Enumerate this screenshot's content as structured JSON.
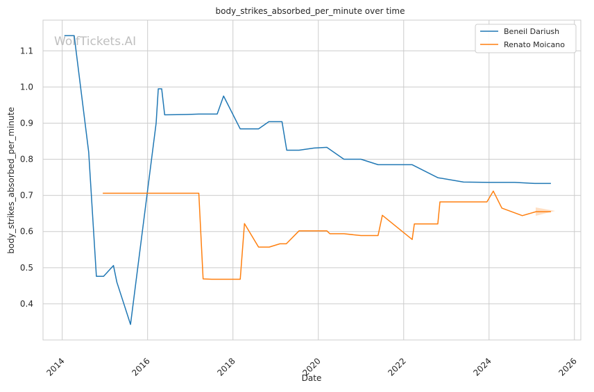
{
  "watermark": "WolfTickets.AI",
  "chart_data": {
    "type": "line",
    "title": "body_strikes_absorbed_per_minute over time",
    "xlabel": "Date",
    "ylabel": "body_strikes_absorbed_per_minute",
    "xlim": [
      2013.55,
      2026.15
    ],
    "ylim": [
      0.3,
      1.185
    ],
    "x_ticks": [
      {
        "value": 2014,
        "label": "2014"
      },
      {
        "value": 2016,
        "label": "2016"
      },
      {
        "value": 2018,
        "label": "2018"
      },
      {
        "value": 2020,
        "label": "2020"
      },
      {
        "value": 2022,
        "label": "2022"
      },
      {
        "value": 2024,
        "label": "2024"
      },
      {
        "value": 2026,
        "label": "2026"
      }
    ],
    "y_ticks": [
      {
        "value": 0.4,
        "label": "0.4"
      },
      {
        "value": 0.5,
        "label": "0.5"
      },
      {
        "value": 0.6,
        "label": "0.6"
      },
      {
        "value": 0.7,
        "label": "0.7"
      },
      {
        "value": 0.8,
        "label": "0.8"
      },
      {
        "value": 0.9,
        "label": "0.9"
      },
      {
        "value": 1.0,
        "label": "1.0"
      },
      {
        "value": 1.1,
        "label": "1.1"
      }
    ],
    "grid": true,
    "legend_position": "top-right",
    "series": [
      {
        "name": "Beneil Dariush",
        "color": "#1f77b4",
        "x": [
          2014.05,
          2014.28,
          2014.62,
          2014.8,
          2014.97,
          2015.2,
          2015.28,
          2015.6,
          2016.2,
          2016.25,
          2016.33,
          2016.4,
          2016.92,
          2017.2,
          2017.63,
          2017.78,
          2018.17,
          2018.6,
          2018.84,
          2019.15,
          2019.26,
          2019.55,
          2019.9,
          2020.2,
          2020.6,
          2021.0,
          2021.4,
          2022.0,
          2022.2,
          2022.8,
          2023.4,
          2024.0,
          2024.6,
          2025.07,
          2025.45
        ],
        "y": [
          1.142,
          1.142,
          0.82,
          0.476,
          0.476,
          0.506,
          0.46,
          0.343,
          0.9,
          0.995,
          0.995,
          0.923,
          0.924,
          0.925,
          0.925,
          0.975,
          0.884,
          0.884,
          0.904,
          0.904,
          0.825,
          0.825,
          0.831,
          0.833,
          0.8,
          0.8,
          0.785,
          0.785,
          0.785,
          0.749,
          0.737,
          0.736,
          0.736,
          0.733,
          0.733
        ]
      },
      {
        "name": "Renato Moicano",
        "color": "#ff7f0e",
        "x": [
          2014.95,
          2017.2,
          2017.3,
          2017.5,
          2018.17,
          2018.27,
          2018.6,
          2018.85,
          2019.1,
          2019.25,
          2019.55,
          2020.2,
          2020.27,
          2020.6,
          2021.0,
          2021.4,
          2021.5,
          2022.2,
          2022.25,
          2022.8,
          2022.85,
          2023.5,
          2023.95,
          2024.1,
          2024.3,
          2024.78,
          2025.1,
          2025.45
        ],
        "y": [
          0.706,
          0.706,
          0.469,
          0.468,
          0.468,
          0.622,
          0.557,
          0.557,
          0.566,
          0.566,
          0.602,
          0.602,
          0.594,
          0.594,
          0.589,
          0.589,
          0.645,
          0.578,
          0.621,
          0.621,
          0.682,
          0.682,
          0.682,
          0.712,
          0.665,
          0.644,
          0.655,
          0.655
        ]
      }
    ]
  }
}
